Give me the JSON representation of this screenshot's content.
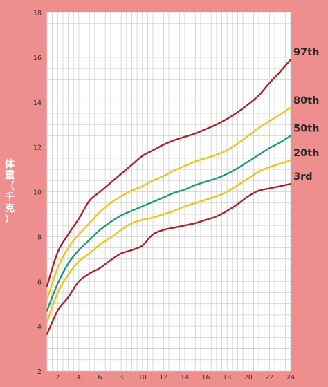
{
  "chart_data": {
    "type": "line",
    "xlabel": "",
    "ylabel": "体重（千克）",
    "ylim": [
      2,
      18
    ],
    "xlim": [
      1,
      24
    ],
    "y_ticks": [
      "2",
      "4",
      "6",
      "8",
      "10",
      "12",
      "14",
      "16",
      "18"
    ],
    "x_ticks": [
      "2",
      "4",
      "6",
      "8",
      "10",
      "12",
      "14",
      "16",
      "18",
      "20",
      "22",
      "24"
    ],
    "grid": true,
    "x": [
      1,
      2,
      3,
      4,
      5,
      6,
      7,
      8,
      9,
      10,
      11,
      12,
      13,
      14,
      15,
      16,
      17,
      18,
      19,
      20,
      21,
      22,
      23,
      24
    ],
    "series": [
      {
        "name": "97th",
        "color": "#a8262b",
        "values": [
          5.8,
          7.3,
          8.1,
          8.8,
          9.6,
          10.0,
          10.4,
          10.8,
          11.2,
          11.6,
          11.85,
          12.1,
          12.3,
          12.45,
          12.6,
          12.8,
          13.0,
          13.25,
          13.55,
          13.9,
          14.3,
          14.85,
          15.35,
          15.9
        ]
      },
      {
        "name": "80th",
        "color": "#f1c21f",
        "values": [
          5.2,
          6.6,
          7.5,
          8.1,
          8.6,
          9.1,
          9.5,
          9.8,
          10.05,
          10.25,
          10.5,
          10.7,
          10.95,
          11.15,
          11.35,
          11.5,
          11.65,
          11.85,
          12.15,
          12.5,
          12.85,
          13.15,
          13.45,
          13.75
        ]
      },
      {
        "name": "50th",
        "color": "#1e9a7a",
        "values": [
          4.7,
          5.9,
          6.8,
          7.4,
          7.85,
          8.3,
          8.65,
          8.95,
          9.15,
          9.35,
          9.55,
          9.75,
          9.95,
          10.1,
          10.3,
          10.45,
          10.6,
          10.8,
          11.05,
          11.35,
          11.65,
          11.95,
          12.2,
          12.5
        ]
      },
      {
        "name": "20th",
        "color": "#f1c21f",
        "values": [
          4.2,
          5.5,
          6.3,
          6.9,
          7.25,
          7.65,
          7.95,
          8.3,
          8.6,
          8.75,
          8.85,
          9.0,
          9.15,
          9.35,
          9.5,
          9.65,
          9.8,
          10.0,
          10.3,
          10.6,
          10.9,
          11.1,
          11.25,
          11.4
        ]
      },
      {
        "name": "3rd",
        "color": "#a8262b",
        "values": [
          3.65,
          4.7,
          5.3,
          6.0,
          6.35,
          6.6,
          6.95,
          7.25,
          7.4,
          7.6,
          8.1,
          8.3,
          8.4,
          8.5,
          8.6,
          8.75,
          8.9,
          9.15,
          9.45,
          9.8,
          10.05,
          10.15,
          10.25,
          10.35
        ]
      }
    ],
    "series_label_color": "#2a2a2a",
    "panel_bg": "#ffffff",
    "grid_color": "#cfcfcf",
    "page_bg": "#ef8e8e"
  }
}
